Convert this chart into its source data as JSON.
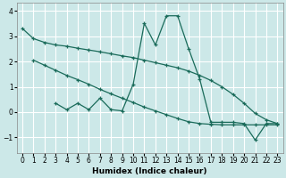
{
  "xlabel": "Humidex (Indice chaleur)",
  "bg_color": "#cce8e8",
  "line_color": "#1a6b5a",
  "grid_color": "#ffffff",
  "ylim": [
    -1.6,
    4.3
  ],
  "xlim": [
    -0.5,
    23.5
  ],
  "yticks": [
    -1,
    0,
    1,
    2,
    3,
    4
  ],
  "xticks": [
    0,
    1,
    2,
    3,
    4,
    5,
    6,
    7,
    8,
    9,
    10,
    11,
    12,
    13,
    14,
    15,
    16,
    17,
    18,
    19,
    20,
    21,
    22,
    23
  ],
  "line1_x": [
    0,
    1,
    2,
    3,
    4,
    5,
    6,
    7,
    8,
    9,
    10,
    11,
    12,
    13,
    14,
    15,
    16,
    17,
    18,
    19,
    20,
    21,
    22,
    23
  ],
  "line1_y": [
    3.3,
    2.9,
    2.75,
    2.65,
    2.6,
    2.52,
    2.45,
    2.38,
    2.3,
    2.22,
    2.15,
    2.05,
    1.95,
    1.85,
    1.75,
    1.62,
    1.45,
    1.25,
    1.0,
    0.7,
    0.35,
    -0.05,
    -0.3,
    -0.45
  ],
  "line2_x": [
    1,
    2,
    3,
    4,
    5,
    6,
    7,
    8,
    9,
    10,
    11,
    12,
    13,
    14,
    15,
    16,
    17,
    18,
    19,
    20,
    21,
    22,
    23
  ],
  "line2_y": [
    2.05,
    1.85,
    1.65,
    1.45,
    1.28,
    1.1,
    0.9,
    0.72,
    0.55,
    0.38,
    0.2,
    0.05,
    -0.1,
    -0.25,
    -0.38,
    -0.45,
    -0.48,
    -0.5,
    -0.5,
    -0.5,
    -0.5,
    -0.5,
    -0.5
  ],
  "line3_x": [
    3,
    4,
    5,
    6,
    7,
    8,
    9,
    10,
    11,
    12,
    13,
    14,
    15,
    16,
    17,
    18,
    19,
    20,
    21,
    22,
    23
  ],
  "line3_y": [
    0.35,
    0.1,
    0.35,
    0.1,
    0.55,
    0.1,
    0.05,
    1.1,
    3.5,
    2.65,
    3.8,
    3.8,
    2.5,
    1.3,
    -0.4,
    -0.4,
    -0.4,
    -0.45,
    -1.1,
    -0.45,
    -0.45
  ]
}
